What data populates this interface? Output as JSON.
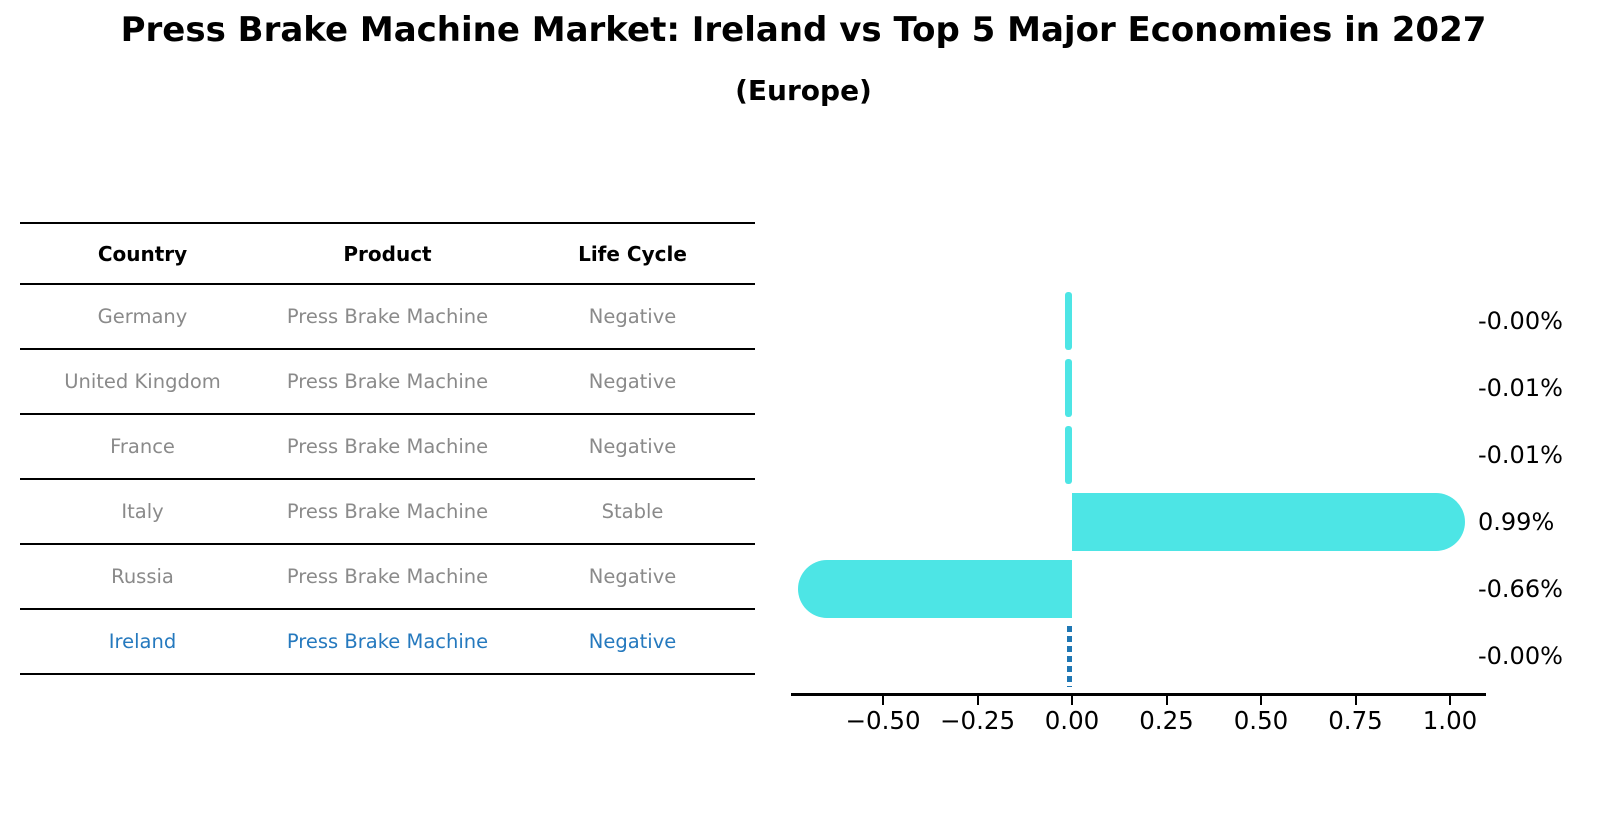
{
  "title": "Press Brake Machine Market: Ireland vs Top 5 Major Economies in 2027",
  "subtitle": "(Europe)",
  "table": {
    "columns": [
      "Country",
      "Product",
      "Life Cycle"
    ],
    "rows": [
      {
        "country": "Germany",
        "product": "Press Brake Machine",
        "life_cycle": "Negative"
      },
      {
        "country": "United Kingdom",
        "product": "Press Brake Machine",
        "life_cycle": "Negative"
      },
      {
        "country": "France",
        "product": "Press Brake Machine",
        "life_cycle": "Negative"
      },
      {
        "country": "Italy",
        "product": "Press Brake Machine",
        "life_cycle": "Stable"
      },
      {
        "country": "Russia",
        "product": "Press Brake Machine",
        "life_cycle": "Negative"
      },
      {
        "country": "Ireland",
        "product": "Press Brake Machine",
        "life_cycle": "Negative"
      }
    ],
    "highlight_row": 5
  },
  "chart_data": {
    "type": "bar",
    "orientation": "horizontal",
    "categories": [
      "Germany",
      "United Kingdom",
      "France",
      "Italy",
      "Russia",
      "Ireland"
    ],
    "values": [
      -0.0,
      -0.01,
      -0.01,
      0.99,
      -0.66,
      -0.0
    ],
    "bar_labels": [
      "-0.00%",
      "-0.01%",
      "-0.01%",
      "0.99%",
      "-0.66%",
      "-0.00%"
    ],
    "highlight_index": 5,
    "x_ticks": {
      "values": [
        -0.5,
        -0.25,
        0.0,
        0.25,
        0.5,
        0.75,
        1.0
      ],
      "labels": [
        "−0.50",
        "−0.25",
        "0.00",
        "0.25",
        "0.50",
        "0.75",
        "1.00"
      ]
    },
    "xlim": [
      -0.74,
      1.1
    ],
    "grid": false,
    "legend": "none",
    "colors": {
      "bar": "#4DE5E5",
      "highlight": "#1f77b4",
      "highlight_text": "#2579be",
      "row_text": "#8a8a8a",
      "axis": "#000000",
      "value_label": "#000000"
    }
  }
}
